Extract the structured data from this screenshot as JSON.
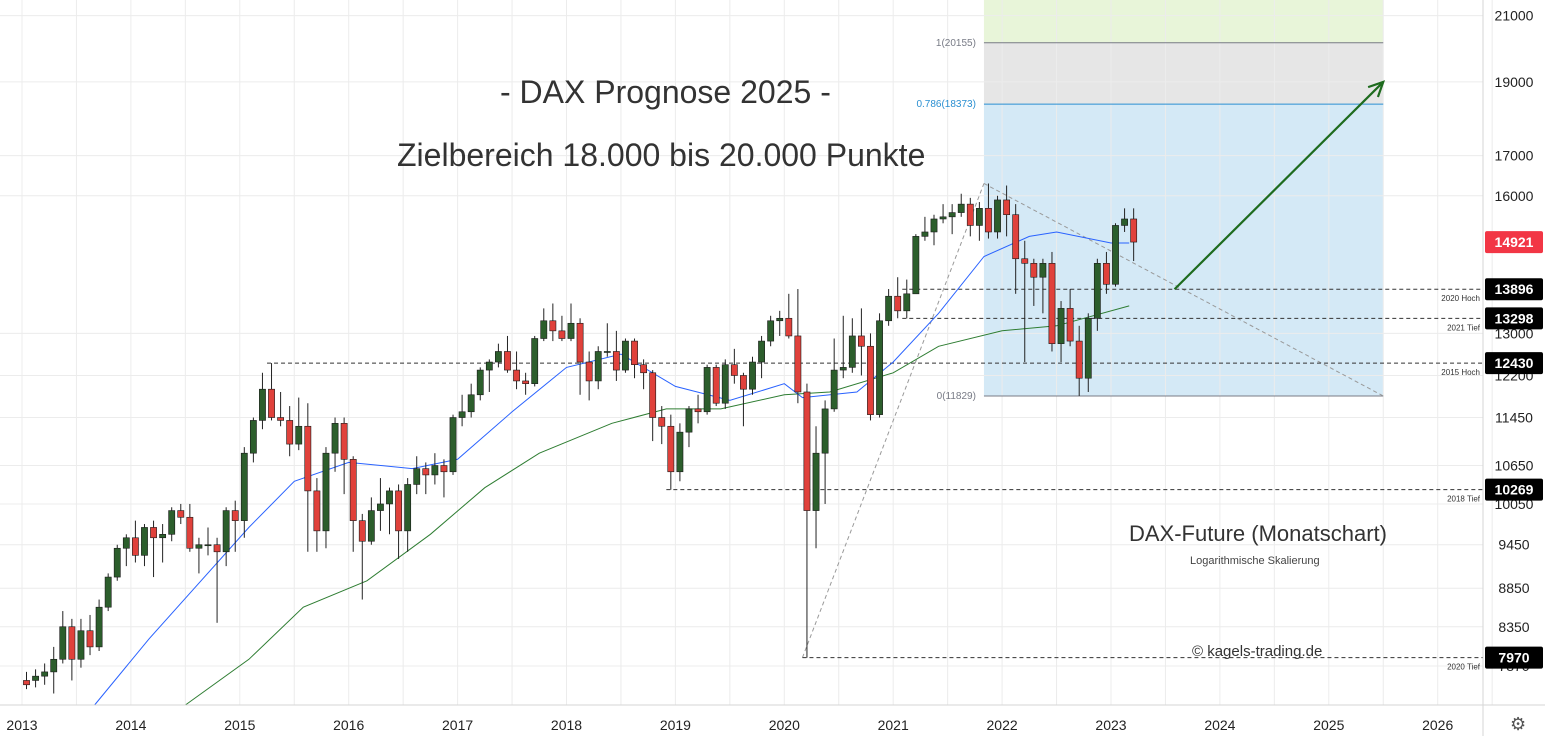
{
  "chart_data": {
    "type": "candlestick",
    "title": "- DAX Prognose 2025 -",
    "subtitle": "Zielbereich 18.000 bis 20.000 Punkte",
    "instrument_label": "DAX-Future (Monatschart)",
    "scale_note": "Logarithmische Skalierung",
    "copyright": "© kagels-trading.de",
    "y_scale": "log",
    "ylim": [
      7420,
      21500
    ],
    "xlim": [
      "2013-01",
      "2026-07"
    ],
    "x_tick_labels": [
      "2013",
      "2014",
      "2015",
      "2016",
      "2017",
      "2018",
      "2019",
      "2020",
      "2021",
      "2022",
      "2023",
      "2024",
      "2025",
      "2026"
    ],
    "y_tick_labels": [
      21000,
      19000,
      17000,
      16000,
      13000,
      12200,
      11450,
      10650,
      10050,
      9450,
      8850,
      8350,
      7870
    ],
    "price_badges": [
      {
        "value": "14921",
        "color": "#f23645"
      },
      {
        "value": "13896",
        "color": "#000000"
      },
      {
        "value": "13298",
        "color": "#000000"
      },
      {
        "value": "12430",
        "color": "#000000"
      },
      {
        "value": "10269",
        "color": "#000000"
      },
      {
        "value": "7970",
        "color": "#000000"
      }
    ],
    "levels": [
      {
        "value": 13896,
        "label": "2020 Hoch",
        "from": "2021-02"
      },
      {
        "value": 13298,
        "label": "2021 Tief",
        "from": "2021-02"
      },
      {
        "value": 12430,
        "label": "2015 Hoch",
        "from": "2015-04"
      },
      {
        "value": 10269,
        "label": "2018 Tief",
        "from": "2018-12"
      },
      {
        "value": 7970,
        "label": "2020 Tief",
        "from": "2020-03"
      }
    ],
    "fibonacci": {
      "from": "2021-11",
      "to": "2025-07",
      "levels": [
        {
          "ratio": "1",
          "value": 20155,
          "label": "1(20155)"
        },
        {
          "ratio": "0.786",
          "value": 18373,
          "label": "0.786(18373)"
        },
        {
          "ratio": "0",
          "value": 11829,
          "label": "0(11829)"
        }
      ],
      "zone_colors": {
        "above_1": "#e8f5d9",
        "between_0786_1": "#e6e6e6",
        "between_0_0786": "#d4e9f6",
        "line_0786": "#2a8fd1"
      }
    },
    "trendlines": [
      {
        "style": "dashed",
        "color": "#999999",
        "from": [
          "2020-03",
          7970
        ],
        "to": [
          "2021-11",
          16300
        ]
      },
      {
        "style": "dashed",
        "color": "#999999",
        "from": [
          "2021-11",
          16300
        ],
        "to": [
          "2025-07",
          11829
        ]
      }
    ],
    "projection_arrow": {
      "color": "#1e6b1e",
      "from": [
        "2023-08",
        13896
      ],
      "to": [
        "2025-07",
        19000
      ]
    },
    "colors": {
      "up": "#2c5e2c",
      "down": "#e0413b",
      "wick": "#222222",
      "ma_fast": "#2962ff",
      "ma_slow": "#2e7d32",
      "grid": "#ececec",
      "level_line": "#333333"
    },
    "candles": [
      [
        "2013-01",
        7700,
        7650,
        7800,
        7600
      ],
      [
        "2013-02",
        7700,
        7750,
        7830,
        7620
      ],
      [
        "2013-03",
        7750,
        7800,
        7900,
        7650
      ],
      [
        "2013-04",
        7800,
        7950,
        8100,
        7550
      ],
      [
        "2013-05",
        7950,
        8350,
        8550,
        7900
      ],
      [
        "2013-06",
        8350,
        7950,
        8450,
        7700
      ],
      [
        "2013-07",
        7950,
        8300,
        8450,
        7850
      ],
      [
        "2013-08",
        8300,
        8100,
        8500,
        8000
      ],
      [
        "2013-09",
        8100,
        8600,
        8700,
        8050
      ],
      [
        "2013-10",
        8600,
        9000,
        9050,
        8550
      ],
      [
        "2013-11",
        9000,
        9400,
        9450,
        8950
      ],
      [
        "2013-12",
        9400,
        9550,
        9600,
        9150
      ],
      [
        "2014-01",
        9550,
        9300,
        9800,
        9200
      ],
      [
        "2014-02",
        9300,
        9700,
        9750,
        9150
      ],
      [
        "2014-03",
        9700,
        9550,
        9800,
        9000
      ],
      [
        "2014-04",
        9550,
        9600,
        9750,
        9200
      ],
      [
        "2014-05",
        9600,
        9950,
        10000,
        9500
      ],
      [
        "2014-06",
        9950,
        9850,
        10050,
        9750
      ],
      [
        "2014-07",
        9850,
        9400,
        10050,
        9350
      ],
      [
        "2014-08",
        9400,
        9450,
        9550,
        9050
      ],
      [
        "2014-09",
        9450,
        9450,
        9700,
        9300
      ],
      [
        "2014-10",
        9450,
        9350,
        9550,
        8400
      ],
      [
        "2014-11",
        9350,
        9950,
        10000,
        9150
      ],
      [
        "2014-12",
        9950,
        9800,
        10100,
        9350
      ],
      [
        "2015-01",
        9800,
        10850,
        10950,
        9550
      ],
      [
        "2015-02",
        10850,
        11400,
        11450,
        10700
      ],
      [
        "2015-03",
        11400,
        11950,
        12250,
        11250
      ],
      [
        "2015-04",
        11950,
        11450,
        12430,
        11400
      ],
      [
        "2015-05",
        11450,
        11400,
        11900,
        11300
      ],
      [
        "2015-06",
        11400,
        11000,
        11650,
        10800
      ],
      [
        "2015-07",
        11000,
        11300,
        11800,
        10900
      ],
      [
        "2015-08",
        11300,
        10250,
        11700,
        9350
      ],
      [
        "2015-09",
        10250,
        9650,
        10450,
        9350
      ],
      [
        "2015-10",
        9650,
        10850,
        10950,
        9400
      ],
      [
        "2015-11",
        10850,
        11350,
        11450,
        10550
      ],
      [
        "2015-12",
        11350,
        10750,
        11450,
        10200
      ],
      [
        "2016-01",
        10750,
        9800,
        10800,
        9350
      ],
      [
        "2016-02",
        9800,
        9500,
        9900,
        8700
      ],
      [
        "2016-03",
        9500,
        9950,
        10150,
        9450
      ],
      [
        "2016-04",
        9950,
        10050,
        10450,
        9650
      ],
      [
        "2016-05",
        10050,
        10250,
        10300,
        9600
      ],
      [
        "2016-06",
        10250,
        9650,
        10350,
        9250
      ],
      [
        "2016-07",
        9650,
        10350,
        10450,
        9350
      ],
      [
        "2016-08",
        10350,
        10600,
        10800,
        10200
      ],
      [
        "2016-09",
        10600,
        10500,
        10700,
        10200
      ],
      [
        "2016-10",
        10500,
        10650,
        10850,
        10350
      ],
      [
        "2016-11",
        10650,
        10550,
        10750,
        10150
      ],
      [
        "2016-12",
        10550,
        11450,
        11500,
        10500
      ],
      [
        "2017-01",
        11450,
        11550,
        11850,
        11300
      ],
      [
        "2017-02",
        11550,
        11850,
        12050,
        11450
      ],
      [
        "2017-03",
        11850,
        12300,
        12350,
        11750
      ],
      [
        "2017-04",
        12300,
        12450,
        12500,
        11900
      ],
      [
        "2017-05",
        12450,
        12650,
        12800,
        12350
      ],
      [
        "2017-06",
        12650,
        12300,
        12950,
        12250
      ],
      [
        "2017-07",
        12300,
        12100,
        12650,
        11950
      ],
      [
        "2017-08",
        12100,
        12050,
        12250,
        11850
      ],
      [
        "2017-09",
        12050,
        12900,
        12950,
        12000
      ],
      [
        "2017-10",
        12900,
        13250,
        13500,
        12850
      ],
      [
        "2017-11",
        13250,
        13050,
        13600,
        12850
      ],
      [
        "2017-12",
        13050,
        12900,
        13350,
        12850
      ],
      [
        "2018-01",
        12900,
        13200,
        13600,
        12850
      ],
      [
        "2018-02",
        13200,
        12450,
        13300,
        11850
      ],
      [
        "2018-03",
        12450,
        12100,
        12650,
        11750
      ],
      [
        "2018-04",
        12100,
        12650,
        12750,
        11950
      ],
      [
        "2018-05",
        12650,
        12650,
        13200,
        12550
      ],
      [
        "2018-06",
        12650,
        12300,
        13050,
        12100
      ],
      [
        "2018-07",
        12300,
        12850,
        12900,
        12250
      ],
      [
        "2018-08",
        12850,
        12400,
        12900,
        12150
      ],
      [
        "2018-09",
        12400,
        12250,
        12500,
        11950
      ],
      [
        "2018-10",
        12250,
        11450,
        12300,
        11050
      ],
      [
        "2018-11",
        11450,
        11300,
        11650,
        11000
      ],
      [
        "2018-12",
        11300,
        10550,
        11500,
        10269
      ],
      [
        "2019-01",
        10550,
        11200,
        11350,
        10400
      ],
      [
        "2019-02",
        11200,
        11600,
        11650,
        10950
      ],
      [
        "2019-03",
        11600,
        11550,
        11850,
        11350
      ],
      [
        "2019-04",
        11550,
        12350,
        12400,
        11500
      ],
      [
        "2019-05",
        12350,
        11700,
        12400,
        11650
      ],
      [
        "2019-06",
        11700,
        12400,
        12500,
        11600
      ],
      [
        "2019-07",
        12400,
        12200,
        12700,
        12050
      ],
      [
        "2019-08",
        12200,
        11950,
        12250,
        11300
      ],
      [
        "2019-09",
        11950,
        12450,
        12550,
        11850
      ],
      [
        "2019-10",
        12450,
        12850,
        12950,
        12150
      ],
      [
        "2019-11",
        12850,
        13250,
        13350,
        12750
      ],
      [
        "2019-12",
        13250,
        13300,
        13450,
        12950
      ],
      [
        "2020-01",
        13300,
        12950,
        13800,
        12900
      ],
      [
        "2020-02",
        12950,
        11900,
        13900,
        11700
      ],
      [
        "2020-03",
        11900,
        9950,
        12050,
        7970
      ],
      [
        "2020-04",
        9950,
        10850,
        11300,
        9400
      ],
      [
        "2020-05",
        10850,
        11600,
        11750,
        10050
      ],
      [
        "2020-06",
        11600,
        12300,
        12900,
        11550
      ],
      [
        "2020-07",
        12300,
        12350,
        13350,
        12150
      ],
      [
        "2020-08",
        12350,
        12950,
        13300,
        12250
      ],
      [
        "2020-09",
        12950,
        12750,
        13500,
        12200
      ],
      [
        "2020-10",
        12750,
        11500,
        13000,
        11400
      ],
      [
        "2020-11",
        11500,
        13250,
        13400,
        11450
      ],
      [
        "2020-12",
        13250,
        13750,
        13900,
        13150
      ],
      [
        "2021-01",
        13750,
        13450,
        14150,
        13300
      ],
      [
        "2021-02",
        13450,
        13800,
        14100,
        13298
      ],
      [
        "2021-03",
        13800,
        15050,
        15100,
        13800
      ],
      [
        "2021-04",
        15050,
        15150,
        15500,
        14950
      ],
      [
        "2021-05",
        15150,
        15450,
        15550,
        14850
      ],
      [
        "2021-06",
        15450,
        15500,
        15800,
        15350
      ],
      [
        "2021-07",
        15500,
        15600,
        15800,
        15100
      ],
      [
        "2021-08",
        15600,
        15800,
        16050,
        15500
      ],
      [
        "2021-09",
        15800,
        15300,
        15950,
        15050
      ],
      [
        "2021-10",
        15300,
        15700,
        15850,
        14950
      ],
      [
        "2021-11",
        15700,
        15150,
        16300,
        15000
      ],
      [
        "2021-12",
        15150,
        15900,
        16000,
        15000
      ],
      [
        "2022-01",
        15900,
        15550,
        16250,
        15050
      ],
      [
        "2022-02",
        15550,
        14550,
        15800,
        13800
      ],
      [
        "2022-03",
        14550,
        14450,
        14950,
        12450
      ],
      [
        "2022-04",
        14450,
        14150,
        14550,
        13550
      ],
      [
        "2022-05",
        14150,
        14450,
        14550,
        13400
      ],
      [
        "2022-06",
        14450,
        12800,
        14700,
        12650
      ],
      [
        "2022-07",
        12800,
        13500,
        13650,
        12450
      ],
      [
        "2022-08",
        13500,
        12850,
        13900,
        12750
      ],
      [
        "2022-09",
        12850,
        12150,
        13150,
        11829
      ],
      [
        "2022-10",
        12150,
        13300,
        13400,
        11900
      ],
      [
        "2022-11",
        13300,
        14450,
        14550,
        13050
      ],
      [
        "2022-12",
        14450,
        14000,
        14700,
        13800
      ],
      [
        "2023-01",
        14000,
        15300,
        15350,
        13950
      ],
      [
        "2023-02",
        15300,
        15450,
        15700,
        15150
      ],
      [
        "2023-03",
        15450,
        14921,
        15700,
        14500
      ]
    ],
    "ma_fast_points": [
      [
        "2013-09",
        7420
      ],
      [
        "2014-03",
        8200
      ],
      [
        "2014-08",
        8850
      ],
      [
        "2015-02",
        9700
      ],
      [
        "2015-07",
        10400
      ],
      [
        "2016-01",
        10700
      ],
      [
        "2016-08",
        10600
      ],
      [
        "2017-01",
        10750
      ],
      [
        "2017-07",
        11550
      ],
      [
        "2018-01",
        12350
      ],
      [
        "2018-07",
        12600
      ],
      [
        "2019-01",
        12000
      ],
      [
        "2019-07",
        11750
      ],
      [
        "2020-01",
        12050
      ],
      [
        "2020-03",
        11800
      ],
      [
        "2020-09",
        11900
      ],
      [
        "2021-01",
        12450
      ],
      [
        "2021-06",
        13400
      ],
      [
        "2021-11",
        14600
      ],
      [
        "2022-04",
        15050
      ],
      [
        "2022-07",
        15150
      ],
      [
        "2023-01",
        14900
      ],
      [
        "2023-03",
        14900
      ]
    ],
    "ma_slow_points": [
      [
        "2014-07",
        7420
      ],
      [
        "2015-02",
        7950
      ],
      [
        "2015-08",
        8600
      ],
      [
        "2016-03",
        8950
      ],
      [
        "2016-10",
        9600
      ],
      [
        "2017-04",
        10300
      ],
      [
        "2017-10",
        10850
      ],
      [
        "2018-06",
        11350
      ],
      [
        "2018-12",
        11600
      ],
      [
        "2019-06",
        11600
      ],
      [
        "2020-01",
        11850
      ],
      [
        "2020-06",
        11900
      ],
      [
        "2021-01",
        12250
      ],
      [
        "2021-06",
        12750
      ],
      [
        "2022-01",
        13050
      ],
      [
        "2022-07",
        13150
      ],
      [
        "2023-03",
        13550
      ]
    ]
  }
}
